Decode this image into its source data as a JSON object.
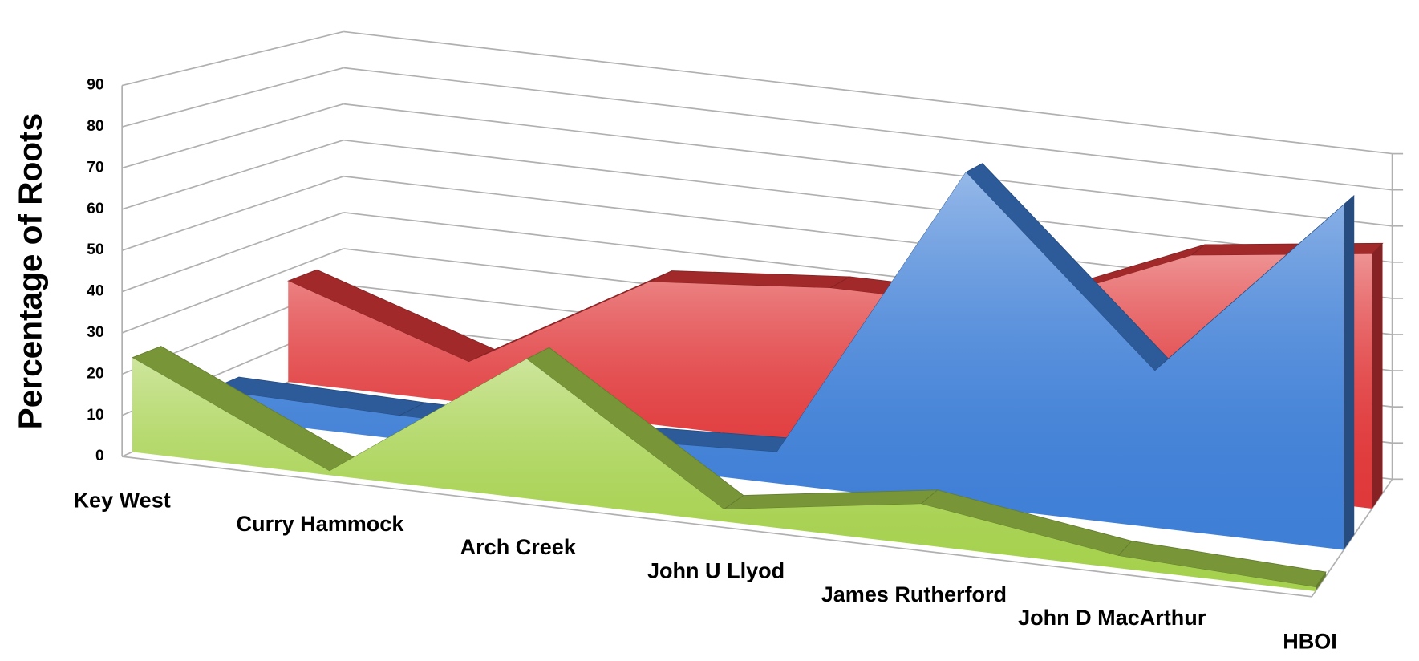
{
  "chart_data": {
    "type": "area3d",
    "y_label": "Percentage of Roots",
    "categories": [
      "Key West",
      "Curry Hammock",
      "Arch Creek",
      "John U Llyod",
      "James Rutherford",
      "John D MacArthur",
      "HBOI"
    ],
    "series": [
      {
        "color": "#e0393b",
        "values": [
          27,
          11,
          38,
          42,
          42,
          62,
          68
        ]
      },
      {
        "color": "#3f7fd6",
        "values": [
          7,
          6,
          6,
          8,
          85,
          40,
          88
        ]
      },
      {
        "color": "#a6d14e",
        "values": [
          23,
          1,
          34,
          3,
          10,
          3,
          1
        ]
      }
    ],
    "ylim": [
      0,
      90
    ],
    "yticks": [
      0,
      10,
      20,
      30,
      40,
      50,
      60,
      70,
      80,
      90
    ],
    "grid": true
  }
}
